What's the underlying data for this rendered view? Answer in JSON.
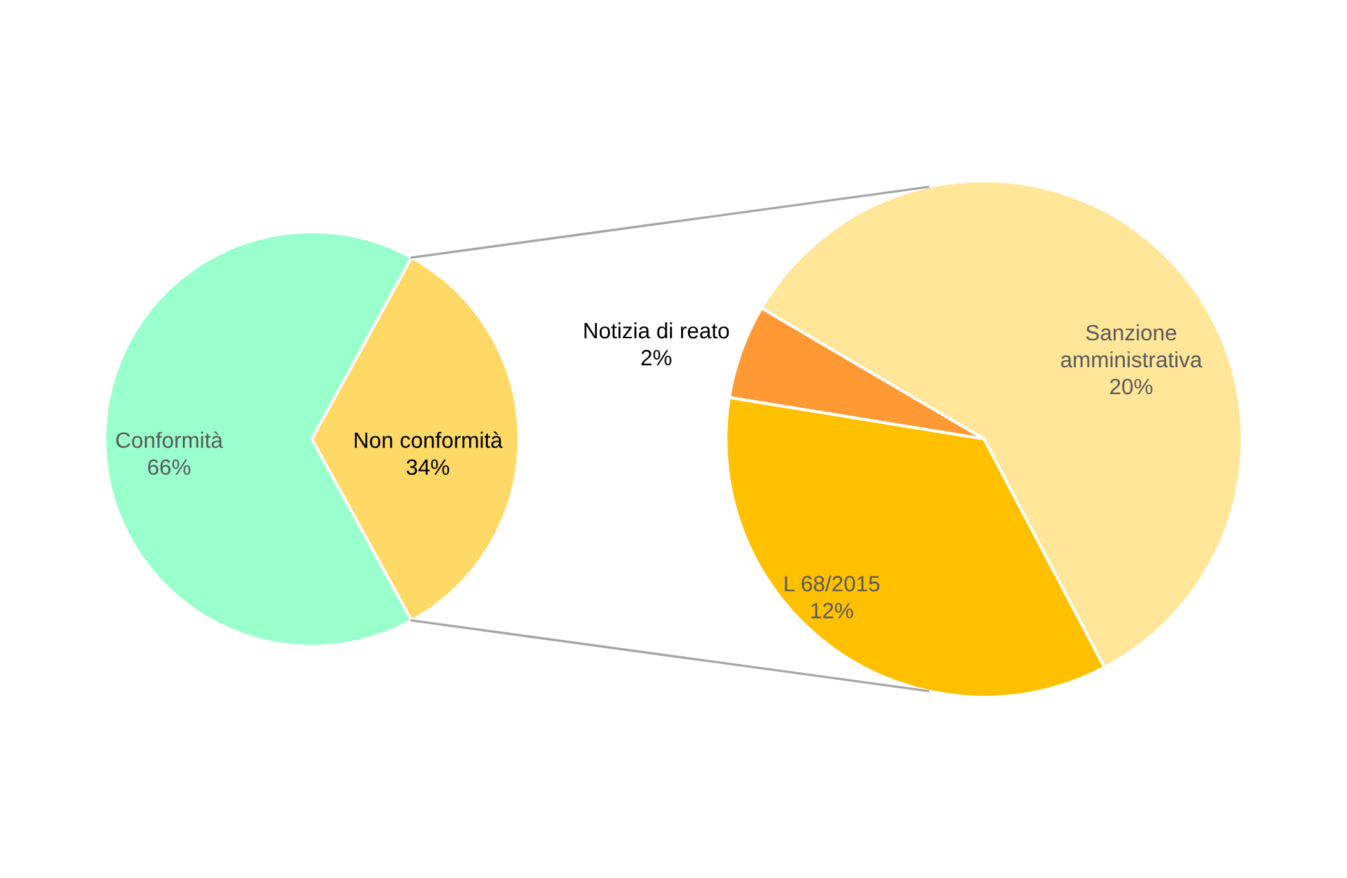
{
  "chart_data": [
    {
      "type": "pie",
      "categories": [
        "Conformità",
        "Non conformità"
      ],
      "values": [
        66,
        34
      ],
      "value_labels": [
        "66%",
        "34%"
      ],
      "colors": [
        "#99ffcc",
        "#ffd966"
      ]
    },
    {
      "type": "pie",
      "categories": [
        "Sanzione amministrativa",
        "Notizia di reato",
        "L 68/2015"
      ],
      "values": [
        20,
        2,
        12
      ],
      "value_labels": [
        "20%",
        "2%",
        "12%"
      ],
      "colors": [
        "#ffe699",
        "#ff9933",
        "#ffc000"
      ]
    }
  ]
}
